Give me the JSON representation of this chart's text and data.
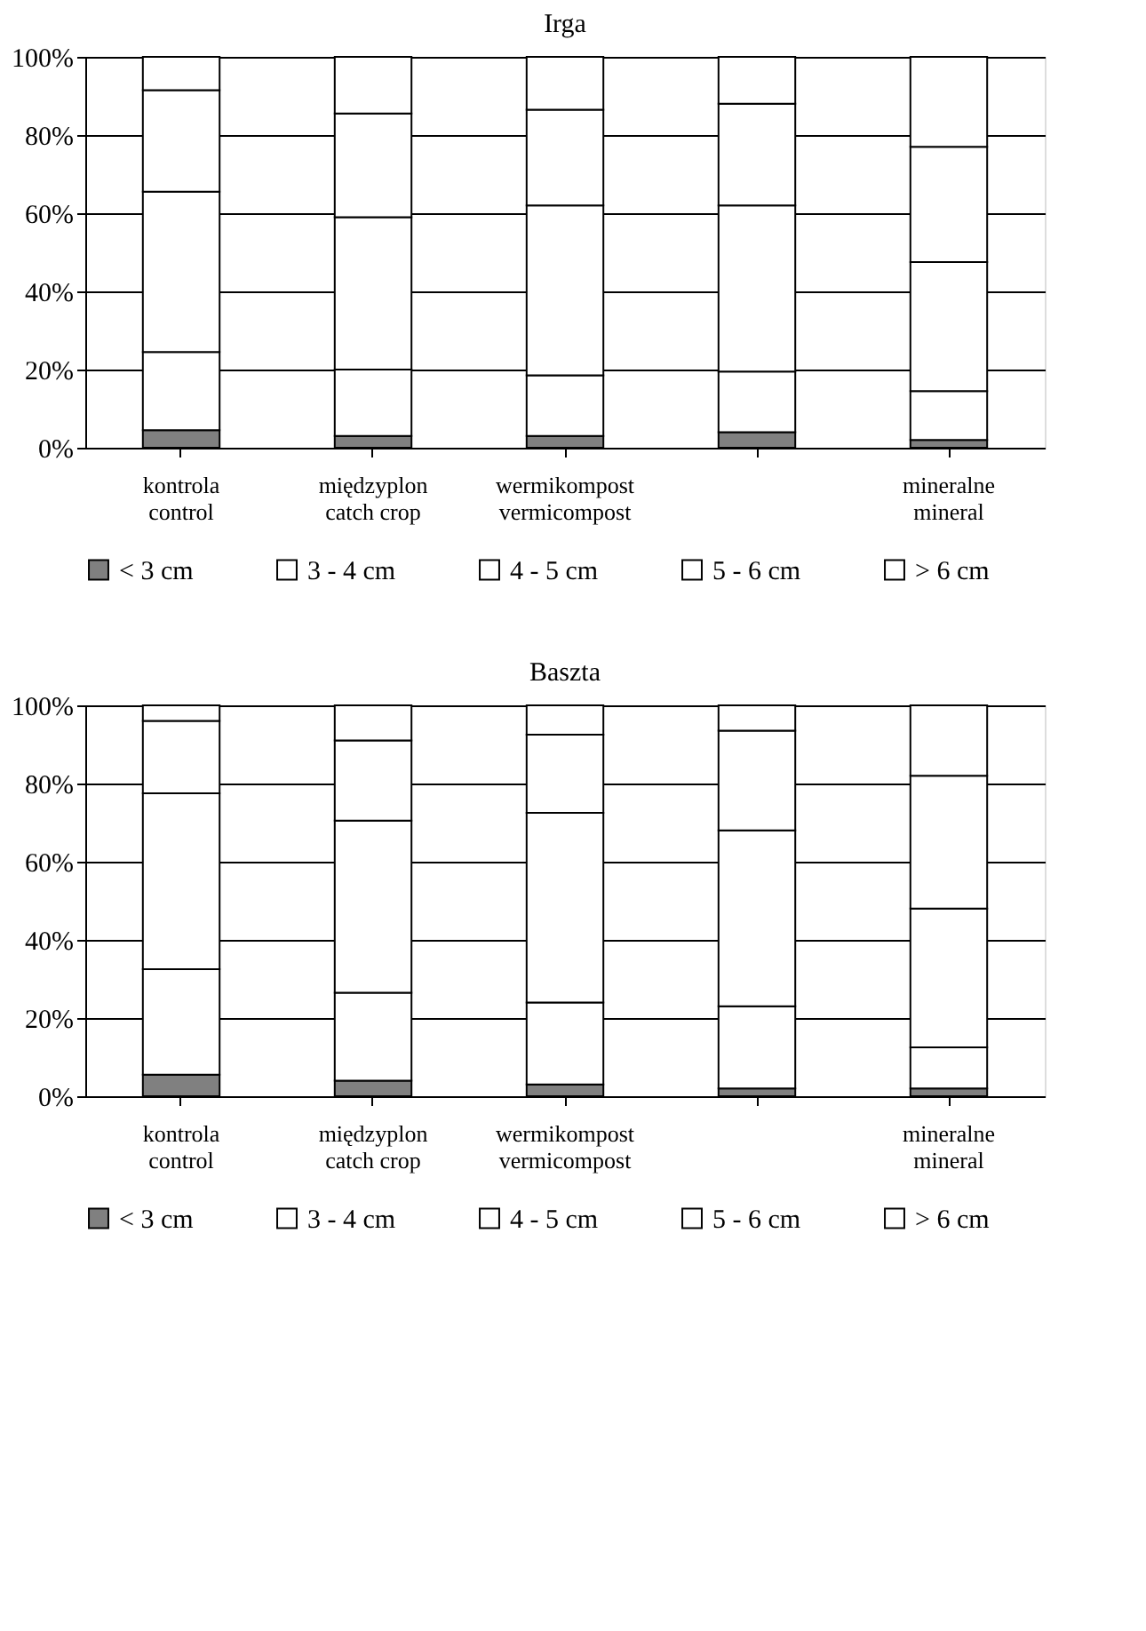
{
  "chart_data": [
    {
      "type": "bar",
      "title": "Irga",
      "stacked": true,
      "grid": "y",
      "legend": "bottom",
      "categories": [
        "kontrola\ncontrol",
        "międzyplon\ncatch crop",
        "wermikompost\nvermicompost",
        null,
        "mineralne\nmineral"
      ],
      "series": [
        {
          "name": "< 3 cm",
          "color": "#808080",
          "values": [
            4.5,
            3,
            3,
            4,
            2
          ]
        },
        {
          "name": "3 - 4 cm",
          "color": "#ffffff",
          "values": [
            20,
            17,
            15.5,
            15.5,
            12.5
          ]
        },
        {
          "name": "4 - 5 cm",
          "color": "#ffffff",
          "values": [
            41,
            39,
            43.5,
            42.5,
            33
          ]
        },
        {
          "name": "5 - 6 cm",
          "color": "#ffffff",
          "values": [
            26,
            26.5,
            24.5,
            26,
            29.5
          ]
        },
        {
          "name": "> 6 cm",
          "color": "#ffffff",
          "values": [
            8.5,
            14.5,
            13.5,
            12,
            23
          ]
        }
      ],
      "ylim": [
        0,
        100
      ],
      "yticks": [
        {
          "value": 0,
          "label": "0%"
        },
        {
          "value": 20,
          "label": "20%"
        },
        {
          "value": 40,
          "label": "40%"
        },
        {
          "value": 60,
          "label": "60%"
        },
        {
          "value": 80,
          "label": "80%"
        },
        {
          "value": 100,
          "label": "100%"
        }
      ]
    },
    {
      "type": "bar",
      "title": "Baszta",
      "stacked": true,
      "grid": "y",
      "legend": "bottom",
      "categories": [
        "kontrola\ncontrol",
        "międzyplon\ncatch crop",
        "wermikompost\nvermicompost",
        null,
        "mineralne\nmineral"
      ],
      "series": [
        {
          "name": "< 3 cm",
          "color": "#808080",
          "values": [
            5.5,
            4,
            3,
            2,
            2
          ]
        },
        {
          "name": "3 - 4 cm",
          "color": "#ffffff",
          "values": [
            27,
            22.5,
            21,
            21,
            10.5
          ]
        },
        {
          "name": "4 - 5 cm",
          "color": "#ffffff",
          "values": [
            45,
            44,
            48.5,
            45,
            35.5
          ]
        },
        {
          "name": "5 - 6 cm",
          "color": "#ffffff",
          "values": [
            18.5,
            20.5,
            20,
            25.5,
            34
          ]
        },
        {
          "name": "> 6 cm",
          "color": "#ffffff",
          "values": [
            4,
            9,
            7.5,
            6.5,
            18
          ]
        }
      ],
      "ylim": [
        0,
        100
      ],
      "yticks": [
        {
          "value": 0,
          "label": "0%"
        },
        {
          "value": 20,
          "label": "20%"
        },
        {
          "value": 40,
          "label": "40%"
        },
        {
          "value": 60,
          "label": "60%"
        },
        {
          "value": 80,
          "label": "80%"
        },
        {
          "value": 100,
          "label": "100%"
        }
      ]
    }
  ]
}
